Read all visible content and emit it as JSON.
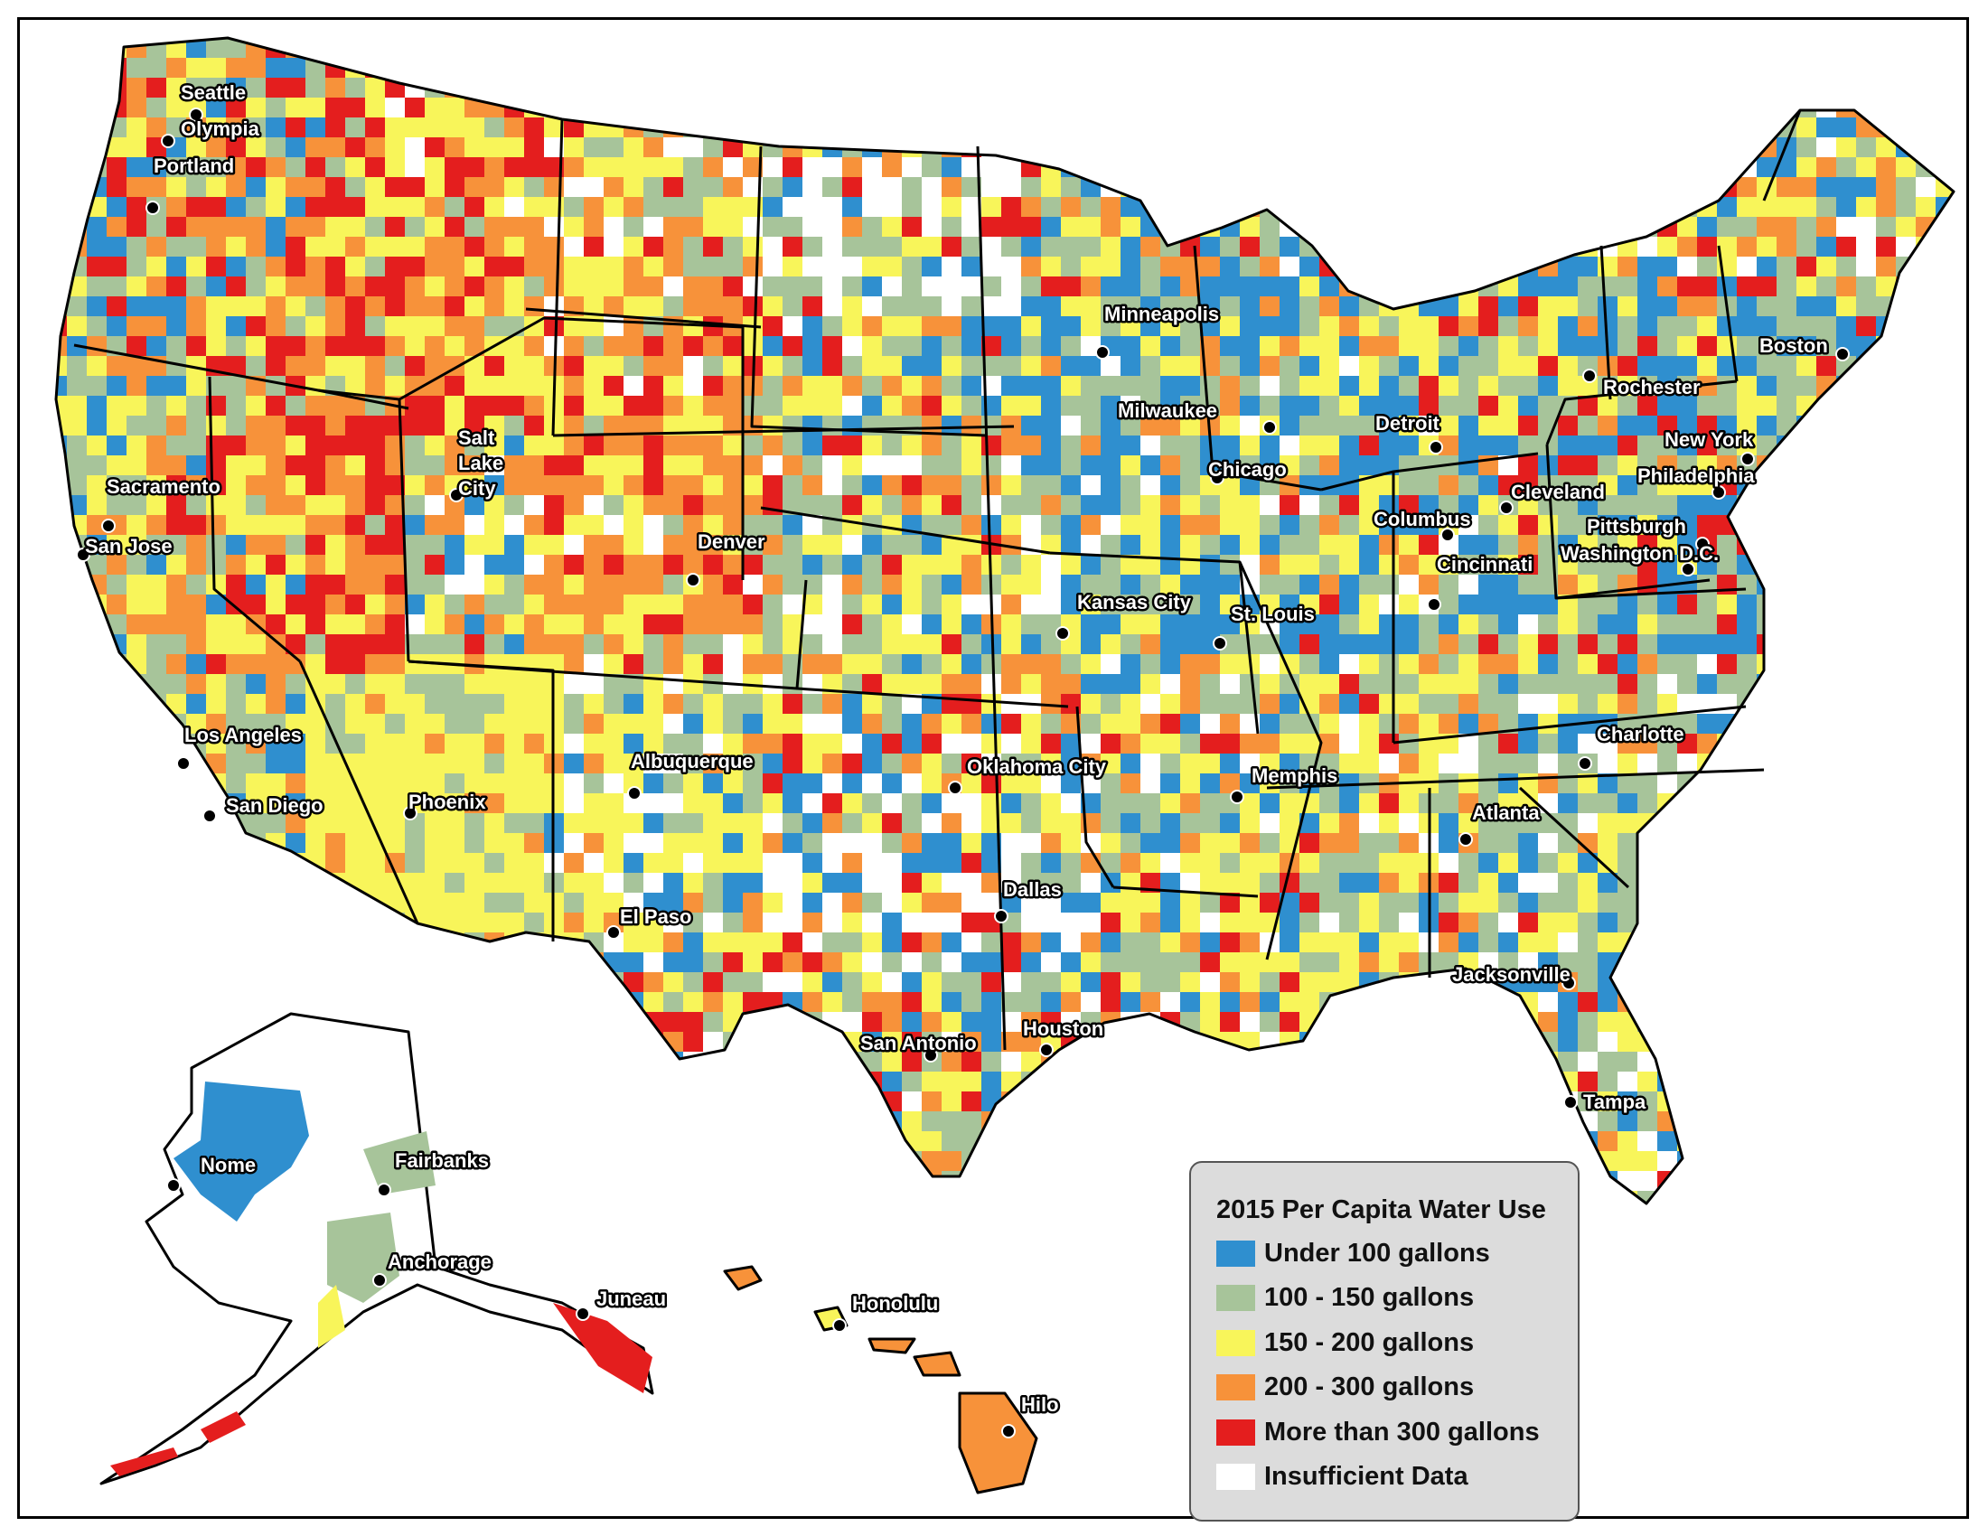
{
  "legend": {
    "title": "2015 Per Capita Water Use",
    "items": [
      {
        "label": "Under 100 gallons",
        "color": "#2f8fcf"
      },
      {
        "label": "100 - 150 gallons",
        "color": "#a7c49a"
      },
      {
        "label": "150 - 200 gallons",
        "color": "#f8f55a"
      },
      {
        "label": "200 - 300 gallons",
        "color": "#f7923a"
      },
      {
        "label": "More than 300 gallons",
        "color": "#e41e1e"
      },
      {
        "label": "Insufficient Data",
        "color": "#ffffff"
      }
    ]
  },
  "cities": [
    {
      "name": "Seattle"
    },
    {
      "name": "Olympia"
    },
    {
      "name": "Portland"
    },
    {
      "name": "Salt Lake City"
    },
    {
      "name": "Sacramento"
    },
    {
      "name": "San Jose"
    },
    {
      "name": "Denver"
    },
    {
      "name": "Minneapolis"
    },
    {
      "name": "Milwaukee"
    },
    {
      "name": "Detroit"
    },
    {
      "name": "Boston"
    },
    {
      "name": "Rochester"
    },
    {
      "name": "New York"
    },
    {
      "name": "Philadelphia"
    },
    {
      "name": "Cleveland"
    },
    {
      "name": "Chicago"
    },
    {
      "name": "Columbus"
    },
    {
      "name": "Pittsburgh"
    },
    {
      "name": "Washington D.C."
    },
    {
      "name": "Cincinnati"
    },
    {
      "name": "Kansas City"
    },
    {
      "name": "St. Louis"
    },
    {
      "name": "Los Angeles"
    },
    {
      "name": "San Diego"
    },
    {
      "name": "Phoenix"
    },
    {
      "name": "Albuquerque"
    },
    {
      "name": "Oklahoma City"
    },
    {
      "name": "Memphis"
    },
    {
      "name": "Charlotte"
    },
    {
      "name": "Atlanta"
    },
    {
      "name": "Dallas"
    },
    {
      "name": "El Paso"
    },
    {
      "name": "Houston"
    },
    {
      "name": "San Antonio"
    },
    {
      "name": "Jacksonville"
    },
    {
      "name": "Tampa"
    },
    {
      "name": "Nome"
    },
    {
      "name": "Fairbanks"
    },
    {
      "name": "Anchorage"
    },
    {
      "name": "Juneau"
    },
    {
      "name": "Honolulu"
    },
    {
      "name": "Hilo"
    }
  ]
}
